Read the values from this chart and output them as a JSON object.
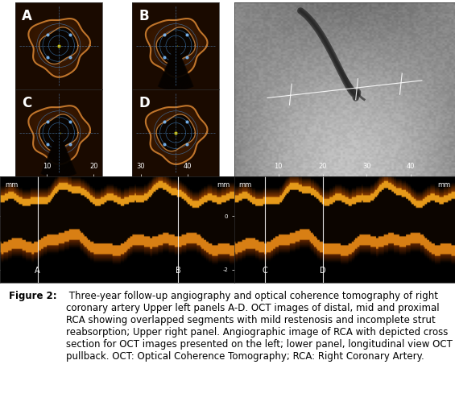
{
  "figure_width": 5.65,
  "figure_height": 5.09,
  "dpi": 100,
  "background_color": "#ffffff",
  "caption_bold_part": "Figure 2:",
  "caption_normal_part": " Three-year follow-up angiography and optical coherence tomography of right coronary artery Upper left panels A-D. OCT images of distal, mid and proximal RCA showing overlapped segments with mild restenosis and incomplete strut reabsorption; Upper right panel. Angiographic image of RCA with depicted cross section for OCT images presented on the left; lower panel, longitudinal view OCT pullback. OCT: Optical Coherence Tomography; RCA: Right Coronary Artery.",
  "caption_fontsize": 8.5,
  "panel_labels": [
    "A",
    "B",
    "C",
    "D"
  ],
  "panel_label_color": "#ffffff",
  "oct_bg_color": "#1a0a00",
  "oct_ring_color": "#c87020",
  "angio_bg_color": "#b0b0b0",
  "longit_bg_color": "#1a0500",
  "longit_wave_color": "#c86010",
  "tick_color": "#ffffff",
  "grid_line_color": "#ffffff"
}
